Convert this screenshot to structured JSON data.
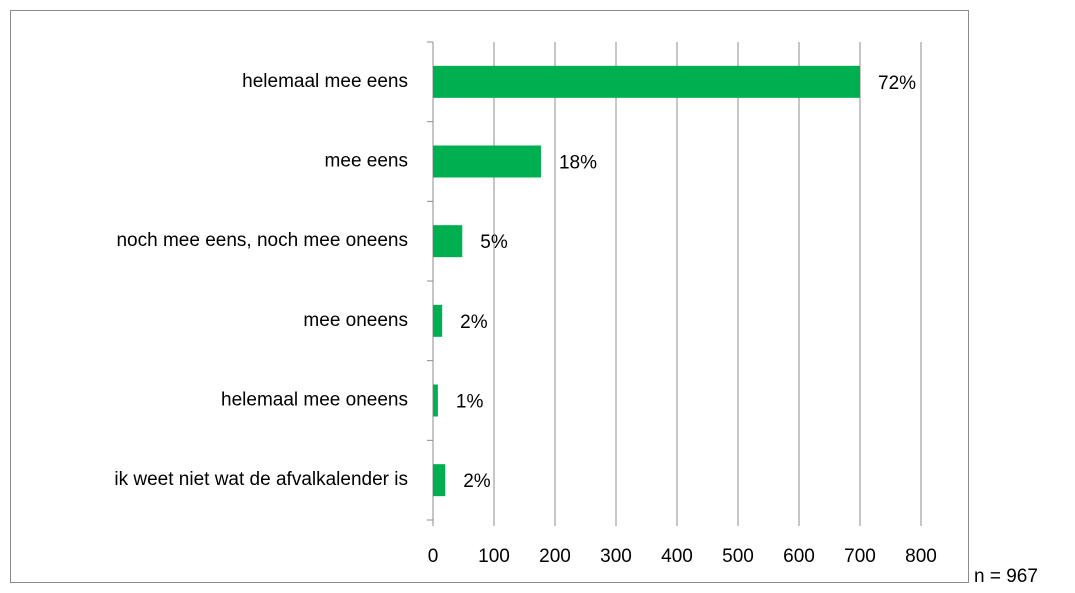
{
  "chart_data": {
    "type": "bar",
    "orientation": "horizontal",
    "categories": [
      "helemaal mee eens",
      "mee eens",
      "noch mee eens, noch mee oneens",
      "mee oneens",
      "helemaal mee oneens",
      "ik weet niet wat de afvalkalender is"
    ],
    "values": [
      700,
      177,
      48,
      15,
      8,
      20
    ],
    "value_labels": [
      "72%",
      "18%",
      "5%",
      "2%",
      "1%",
      "2%"
    ],
    "color": "#00b050",
    "xlim": [
      0,
      800
    ],
    "xticks": [
      0,
      100,
      200,
      300,
      400,
      500,
      600,
      700,
      800
    ],
    "grid": true,
    "annotation": "n = 967"
  }
}
